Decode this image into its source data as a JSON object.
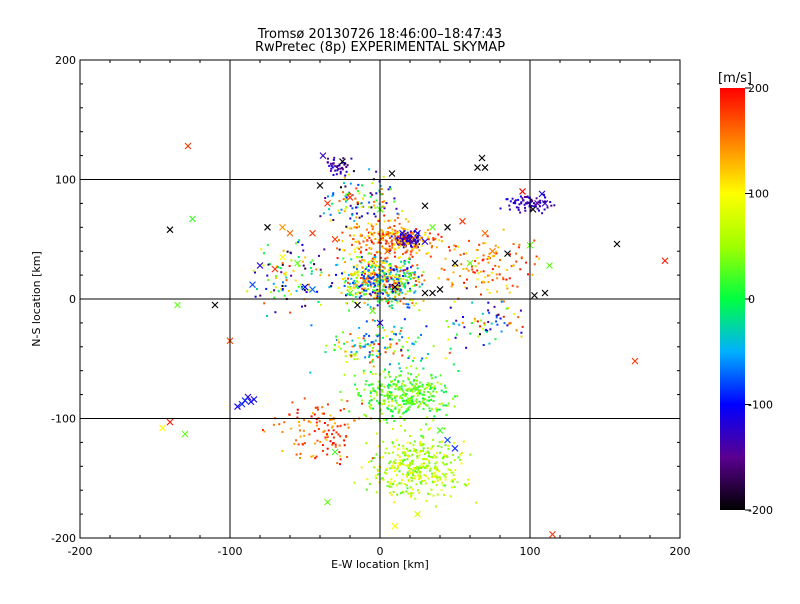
{
  "chart_data": {
    "type": "scatter",
    "title": "Tromsø 20130726 18:46:00–18:47:43",
    "subtitle": "RwPretec (8p) EXPERIMENTAL SKYMAP",
    "xlabel": "E-W location [km]",
    "ylabel": "N-S location [km]",
    "xlim": [
      -200,
      200
    ],
    "ylim": [
      -200,
      200
    ],
    "xticks": [
      "-200",
      "-100",
      "0",
      "100",
      "200"
    ],
    "yticks": [
      "200",
      "100",
      "0",
      "-100",
      "-200"
    ],
    "grid": true,
    "grid_values_x": [
      -100,
      0,
      100
    ],
    "grid_values_y": [
      -100,
      0,
      100
    ],
    "colorbar": {
      "label": "[m/s]",
      "range": [
        -200,
        200
      ],
      "ticks": [
        "200",
        "100",
        "0",
        "-100",
        "-200"
      ],
      "tick_values": [
        200,
        100,
        0,
        -100,
        -200
      ]
    },
    "markers": {
      "cross": [
        {
          "x": -128,
          "y": 128,
          "v": 180
        },
        {
          "x": -140,
          "y": 58,
          "v": -200
        },
        {
          "x": -125,
          "y": 67,
          "v": 20
        },
        {
          "x": -100,
          "y": -35,
          "v": 170
        },
        {
          "x": -110,
          "y": -5,
          "v": -200
        },
        {
          "x": -135,
          "y": -5,
          "v": 30
        },
        {
          "x": -140,
          "y": -103,
          "v": 190
        },
        {
          "x": -145,
          "y": -108,
          "v": 100
        },
        {
          "x": -130,
          "y": -113,
          "v": 30
        },
        {
          "x": -88,
          "y": -82,
          "v": -120
        },
        {
          "x": -86,
          "y": -86,
          "v": -110
        },
        {
          "x": -84,
          "y": -84,
          "v": -100
        },
        {
          "x": -90,
          "y": -85,
          "v": -90
        },
        {
          "x": -85,
          "y": 12,
          "v": -80
        },
        {
          "x": -80,
          "y": 28,
          "v": -120
        },
        {
          "x": -65,
          "y": 60,
          "v": 140
        },
        {
          "x": -75,
          "y": 60,
          "v": -200
        },
        {
          "x": -60,
          "y": 55,
          "v": 160
        },
        {
          "x": -55,
          "y": 30,
          "v": 30
        },
        {
          "x": -50,
          "y": 10,
          "v": -100
        },
        {
          "x": -45,
          "y": 8,
          "v": -70
        },
        {
          "x": -38,
          "y": 120,
          "v": -130
        },
        {
          "x": -40,
          "y": 95,
          "v": -200
        },
        {
          "x": -25,
          "y": 115,
          "v": -200
        },
        {
          "x": -20,
          "y": 85,
          "v": 180
        },
        {
          "x": 8,
          "y": 105,
          "v": -200
        },
        {
          "x": 0,
          "y": 75,
          "v": 20
        },
        {
          "x": 20,
          "y": 50,
          "v": -130
        },
        {
          "x": 25,
          "y": 55,
          "v": -110
        },
        {
          "x": 15,
          "y": 55,
          "v": -100
        },
        {
          "x": 30,
          "y": 78,
          "v": -200
        },
        {
          "x": 45,
          "y": 60,
          "v": -200
        },
        {
          "x": 55,
          "y": 65,
          "v": 180
        },
        {
          "x": 65,
          "y": 110,
          "v": -200
        },
        {
          "x": 68,
          "y": 118,
          "v": -200
        },
        {
          "x": 70,
          "y": 110,
          "v": -200
        },
        {
          "x": 75,
          "y": 40,
          "v": 150
        },
        {
          "x": 85,
          "y": 38,
          "v": -200
        },
        {
          "x": 95,
          "y": 90,
          "v": 200
        },
        {
          "x": 100,
          "y": 45,
          "v": 30
        },
        {
          "x": 105,
          "y": 80,
          "v": -150
        },
        {
          "x": 102,
          "y": 75,
          "v": -200
        },
        {
          "x": 110,
          "y": 80,
          "v": -130
        },
        {
          "x": 108,
          "y": 88,
          "v": -110
        },
        {
          "x": 113,
          "y": 28,
          "v": 30
        },
        {
          "x": 110,
          "y": 5,
          "v": -200
        },
        {
          "x": 103,
          "y": 3,
          "v": -200
        },
        {
          "x": 158,
          "y": 46,
          "v": -200
        },
        {
          "x": 190,
          "y": 32,
          "v": 190
        },
        {
          "x": 170,
          "y": -52,
          "v": 180
        },
        {
          "x": 115,
          "y": -197,
          "v": 180
        },
        {
          "x": 45,
          "y": -118,
          "v": -80
        },
        {
          "x": 50,
          "y": -125,
          "v": -90
        },
        {
          "x": 20,
          "y": -85,
          "v": 40
        },
        {
          "x": -30,
          "y": -128,
          "v": 20
        },
        {
          "x": -35,
          "y": -170,
          "v": 30
        },
        {
          "x": 10,
          "y": -190,
          "v": 100
        },
        {
          "x": 25,
          "y": -180,
          "v": 80
        },
        {
          "x": -20,
          "y": 5,
          "v": 30
        },
        {
          "x": -10,
          "y": 15,
          "v": 150
        },
        {
          "x": -15,
          "y": -5,
          "v": -200
        },
        {
          "x": 10,
          "y": 10,
          "v": -200
        },
        {
          "x": 30,
          "y": 5,
          "v": -200
        },
        {
          "x": 35,
          "y": 5,
          "v": -200
        },
        {
          "x": 40,
          "y": 8,
          "v": -200
        },
        {
          "x": -5,
          "y": 30,
          "v": 100
        },
        {
          "x": 5,
          "y": 40,
          "v": 160
        },
        {
          "x": -30,
          "y": 50,
          "v": 180
        },
        {
          "x": -45,
          "y": 55,
          "v": 180
        },
        {
          "x": 20,
          "y": 20,
          "v": 40
        },
        {
          "x": 0,
          "y": -20,
          "v": -110
        },
        {
          "x": -5,
          "y": -10,
          "v": 30
        },
        {
          "x": 50,
          "y": 30,
          "v": -200
        },
        {
          "x": 60,
          "y": 30,
          "v": 30
        },
        {
          "x": 70,
          "y": 55,
          "v": 160
        },
        {
          "x": 30,
          "y": 48,
          "v": -120
        },
        {
          "x": 35,
          "y": 60,
          "v": 30
        },
        {
          "x": -35,
          "y": 80,
          "v": 180
        },
        {
          "x": -65,
          "y": 35,
          "v": 100
        },
        {
          "x": -70,
          "y": 25,
          "v": 180
        },
        {
          "x": -95,
          "y": -90,
          "v": -110
        },
        {
          "x": -92,
          "y": -88,
          "v": -90
        },
        {
          "x": 25,
          "y": -75,
          "v": 20
        },
        {
          "x": 40,
          "y": -110,
          "v": 20
        }
      ],
      "clusters": [
        {
          "cx": 0,
          "cy": 15,
          "rx": 38,
          "ry": 30,
          "count": 520,
          "vmin": -120,
          "vmax": 200
        },
        {
          "cx": 18,
          "cy": 50,
          "rx": 12,
          "ry": 8,
          "count": 160,
          "vmin": -160,
          "vmax": -100
        },
        {
          "cx": 5,
          "cy": 50,
          "rx": 45,
          "ry": 25,
          "count": 240,
          "vmin": 100,
          "vmax": 200
        },
        {
          "cx": -10,
          "cy": 85,
          "rx": 40,
          "ry": 30,
          "count": 110,
          "vmin": -200,
          "vmax": 200
        },
        {
          "cx": -30,
          "cy": 110,
          "rx": 15,
          "ry": 12,
          "count": 40,
          "vmin": -160,
          "vmax": -100
        },
        {
          "cx": 15,
          "cy": -80,
          "rx": 45,
          "ry": 30,
          "count": 330,
          "vmin": -10,
          "vmax": 70
        },
        {
          "cx": 25,
          "cy": -140,
          "rx": 45,
          "ry": 40,
          "count": 360,
          "vmin": 20,
          "vmax": 110
        },
        {
          "cx": -40,
          "cy": -110,
          "rx": 40,
          "ry": 40,
          "count": 120,
          "vmin": 120,
          "vmax": 200
        },
        {
          "cx": -60,
          "cy": 20,
          "rx": 40,
          "ry": 40,
          "count": 100,
          "vmin": -200,
          "vmax": 200
        },
        {
          "cx": 70,
          "cy": 30,
          "rx": 45,
          "ry": 40,
          "count": 120,
          "vmin": 100,
          "vmax": 200
        },
        {
          "cx": 100,
          "cy": 80,
          "rx": 25,
          "ry": 12,
          "count": 70,
          "vmin": -160,
          "vmax": -100
        },
        {
          "cx": 70,
          "cy": -20,
          "rx": 40,
          "ry": 30,
          "count": 70,
          "vmin": -200,
          "vmax": 200
        },
        {
          "cx": 0,
          "cy": -40,
          "rx": 60,
          "ry": 30,
          "count": 150,
          "vmin": -100,
          "vmax": 200
        }
      ]
    }
  }
}
